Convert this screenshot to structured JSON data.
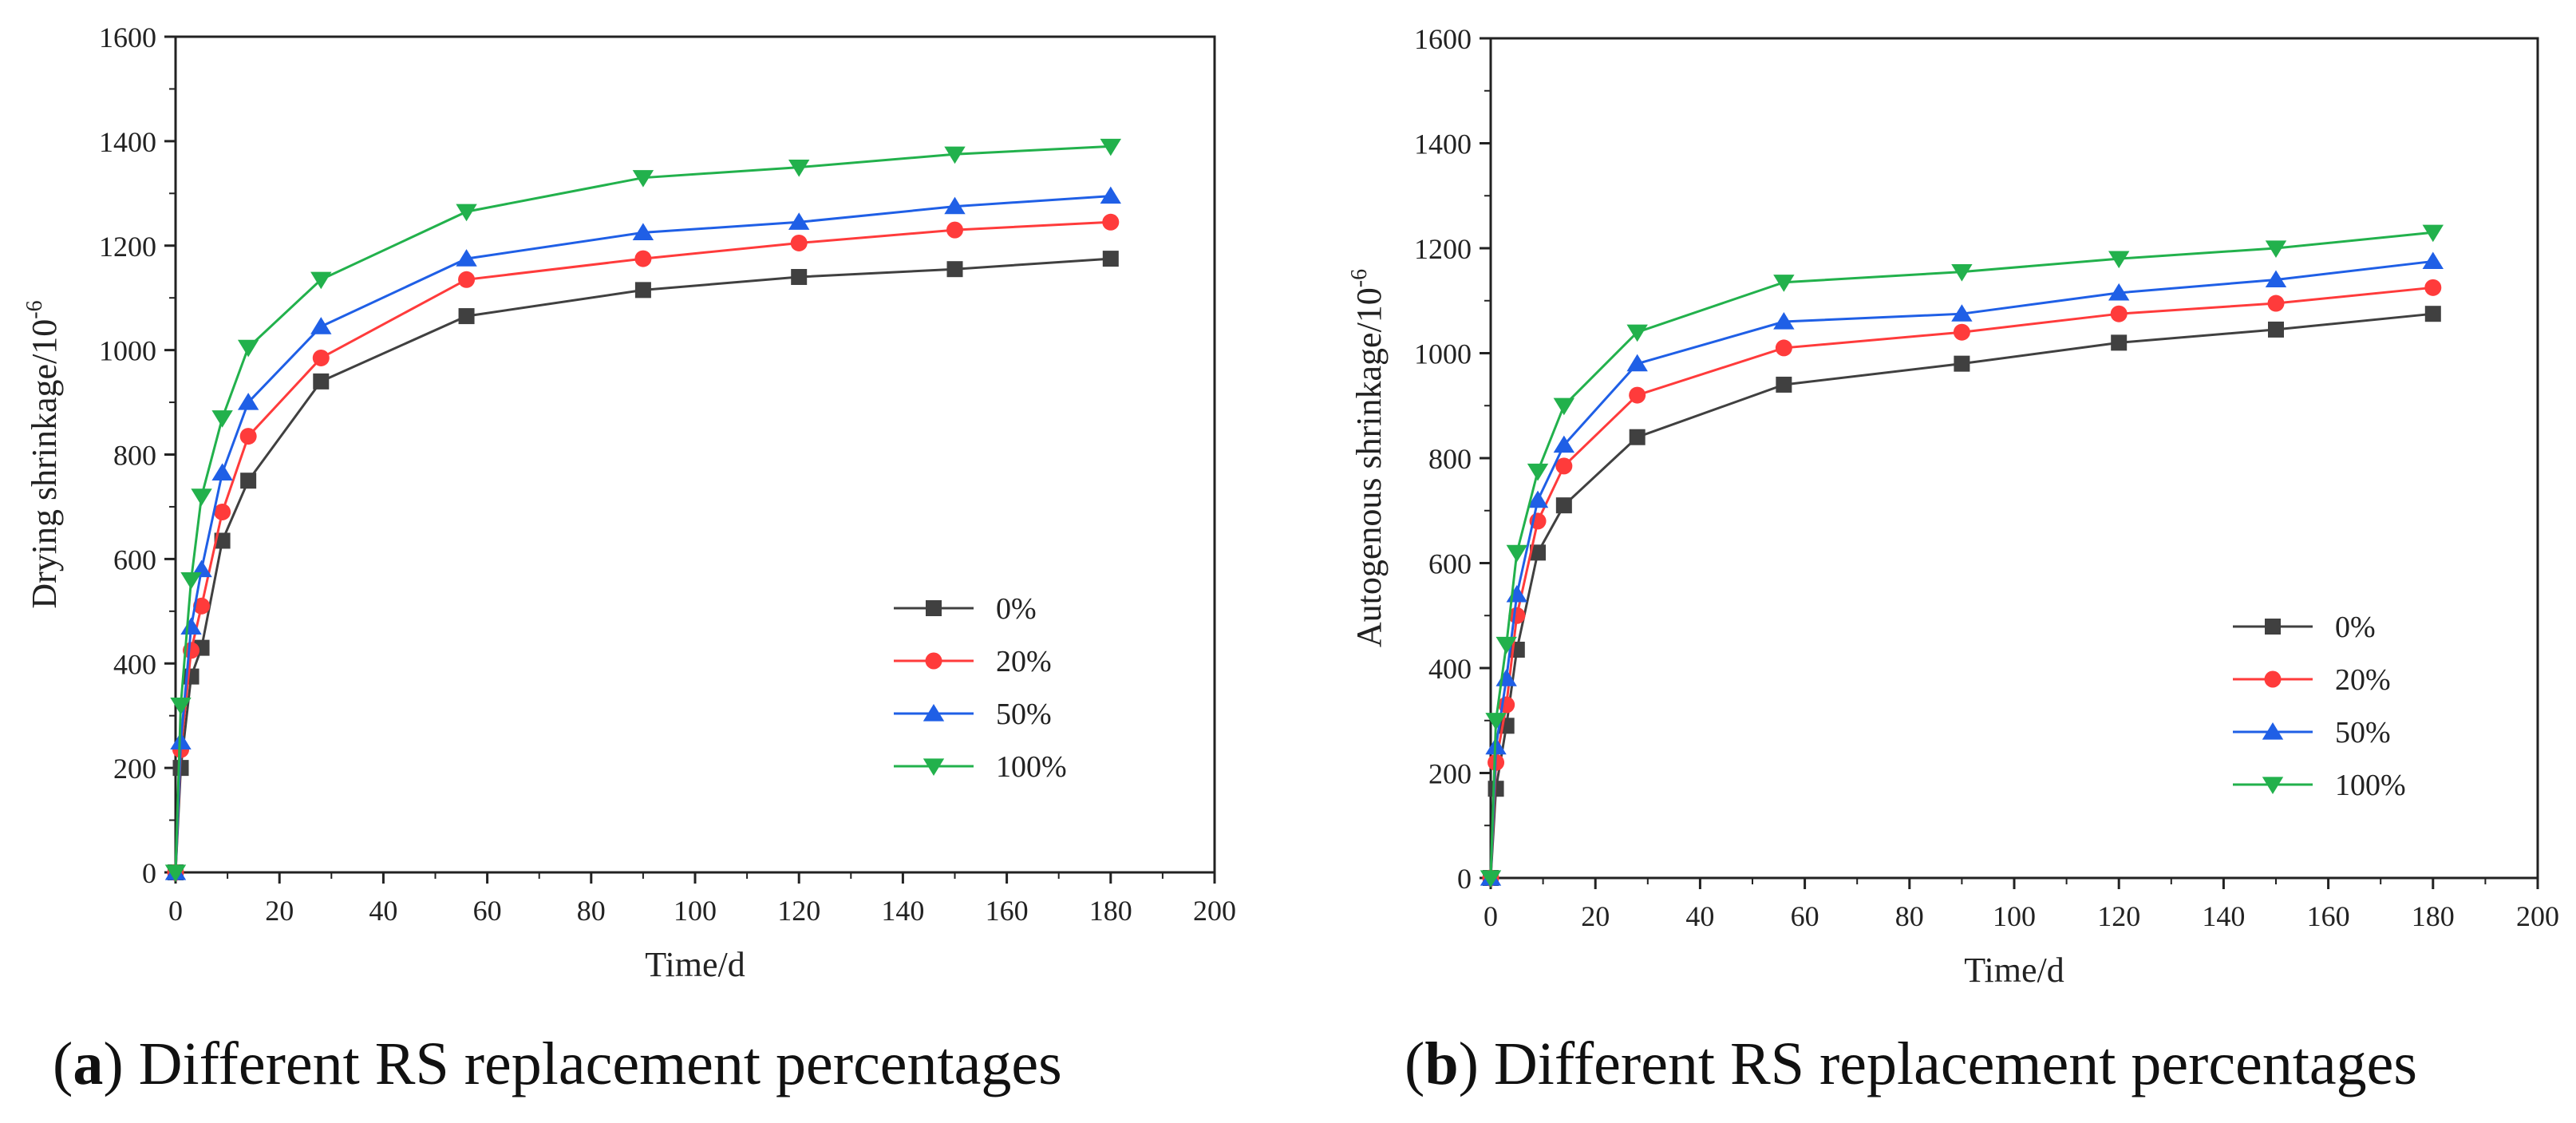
{
  "chart_data": [
    {
      "type": "line",
      "panel_letter": "a",
      "caption": "Different RS replacement percentages",
      "xlabel": "Time/d",
      "ylabel": "Drying shrinkage/10",
      "ylabel_exponent": "-6",
      "xlim": [
        0,
        200
      ],
      "ylim": [
        0,
        1600
      ],
      "xticks": [
        0,
        20,
        40,
        60,
        80,
        100,
        120,
        140,
        160,
        180,
        200
      ],
      "yticks": [
        0,
        200,
        400,
        600,
        800,
        1000,
        1200,
        1400,
        1600
      ],
      "legend_position": "lower-right",
      "x": [
        0,
        1,
        3,
        5,
        9,
        14,
        28,
        56,
        90,
        120,
        150,
        180
      ],
      "series": [
        {
          "name": "0%",
          "color": "#404040",
          "marker": "square",
          "values": [
            0,
            200,
            375,
            430,
            635,
            750,
            940,
            1065,
            1115,
            1140,
            1155,
            1175
          ]
        },
        {
          "name": "20%",
          "color": "#ff3b3b",
          "marker": "circle",
          "values": [
            0,
            235,
            425,
            510,
            690,
            835,
            985,
            1135,
            1175,
            1205,
            1230,
            1245
          ]
        },
        {
          "name": "50%",
          "color": "#1f5fe6",
          "marker": "triangle-up",
          "values": [
            0,
            250,
            470,
            580,
            765,
            900,
            1045,
            1175,
            1225,
            1245,
            1275,
            1295
          ]
        },
        {
          "name": "100%",
          "color": "#22b14c",
          "marker": "triangle-down",
          "values": [
            0,
            320,
            560,
            720,
            870,
            1005,
            1135,
            1265,
            1330,
            1350,
            1375,
            1390
          ]
        }
      ]
    },
    {
      "type": "line",
      "panel_letter": "b",
      "caption": "Different RS replacement percentages",
      "xlabel": "Time/d",
      "ylabel": "Autogenous shrinkage/10",
      "ylabel_exponent": "-6",
      "xlim": [
        0,
        200
      ],
      "ylim": [
        0,
        1600
      ],
      "xticks": [
        0,
        20,
        40,
        60,
        80,
        100,
        120,
        140,
        160,
        180,
        200
      ],
      "yticks": [
        0,
        200,
        400,
        600,
        800,
        1000,
        1200,
        1400,
        1600
      ],
      "legend_position": "lower-right",
      "x": [
        0,
        1,
        3,
        5,
        9,
        14,
        28,
        56,
        90,
        120,
        150,
        180
      ],
      "series": [
        {
          "name": "0%",
          "color": "#404040",
          "marker": "square",
          "values": [
            0,
            170,
            290,
            435,
            620,
            710,
            840,
            940,
            980,
            1020,
            1045,
            1075
          ]
        },
        {
          "name": "20%",
          "color": "#ff3b3b",
          "marker": "circle",
          "values": [
            0,
            220,
            330,
            500,
            680,
            785,
            920,
            1010,
            1040,
            1075,
            1095,
            1125
          ]
        },
        {
          "name": "50%",
          "color": "#1f5fe6",
          "marker": "triangle-up",
          "values": [
            0,
            250,
            380,
            540,
            720,
            825,
            980,
            1060,
            1075,
            1115,
            1140,
            1175
          ]
        },
        {
          "name": "100%",
          "color": "#22b14c",
          "marker": "triangle-down",
          "values": [
            0,
            300,
            445,
            620,
            775,
            900,
            1040,
            1135,
            1155,
            1180,
            1200,
            1230
          ]
        }
      ]
    }
  ]
}
